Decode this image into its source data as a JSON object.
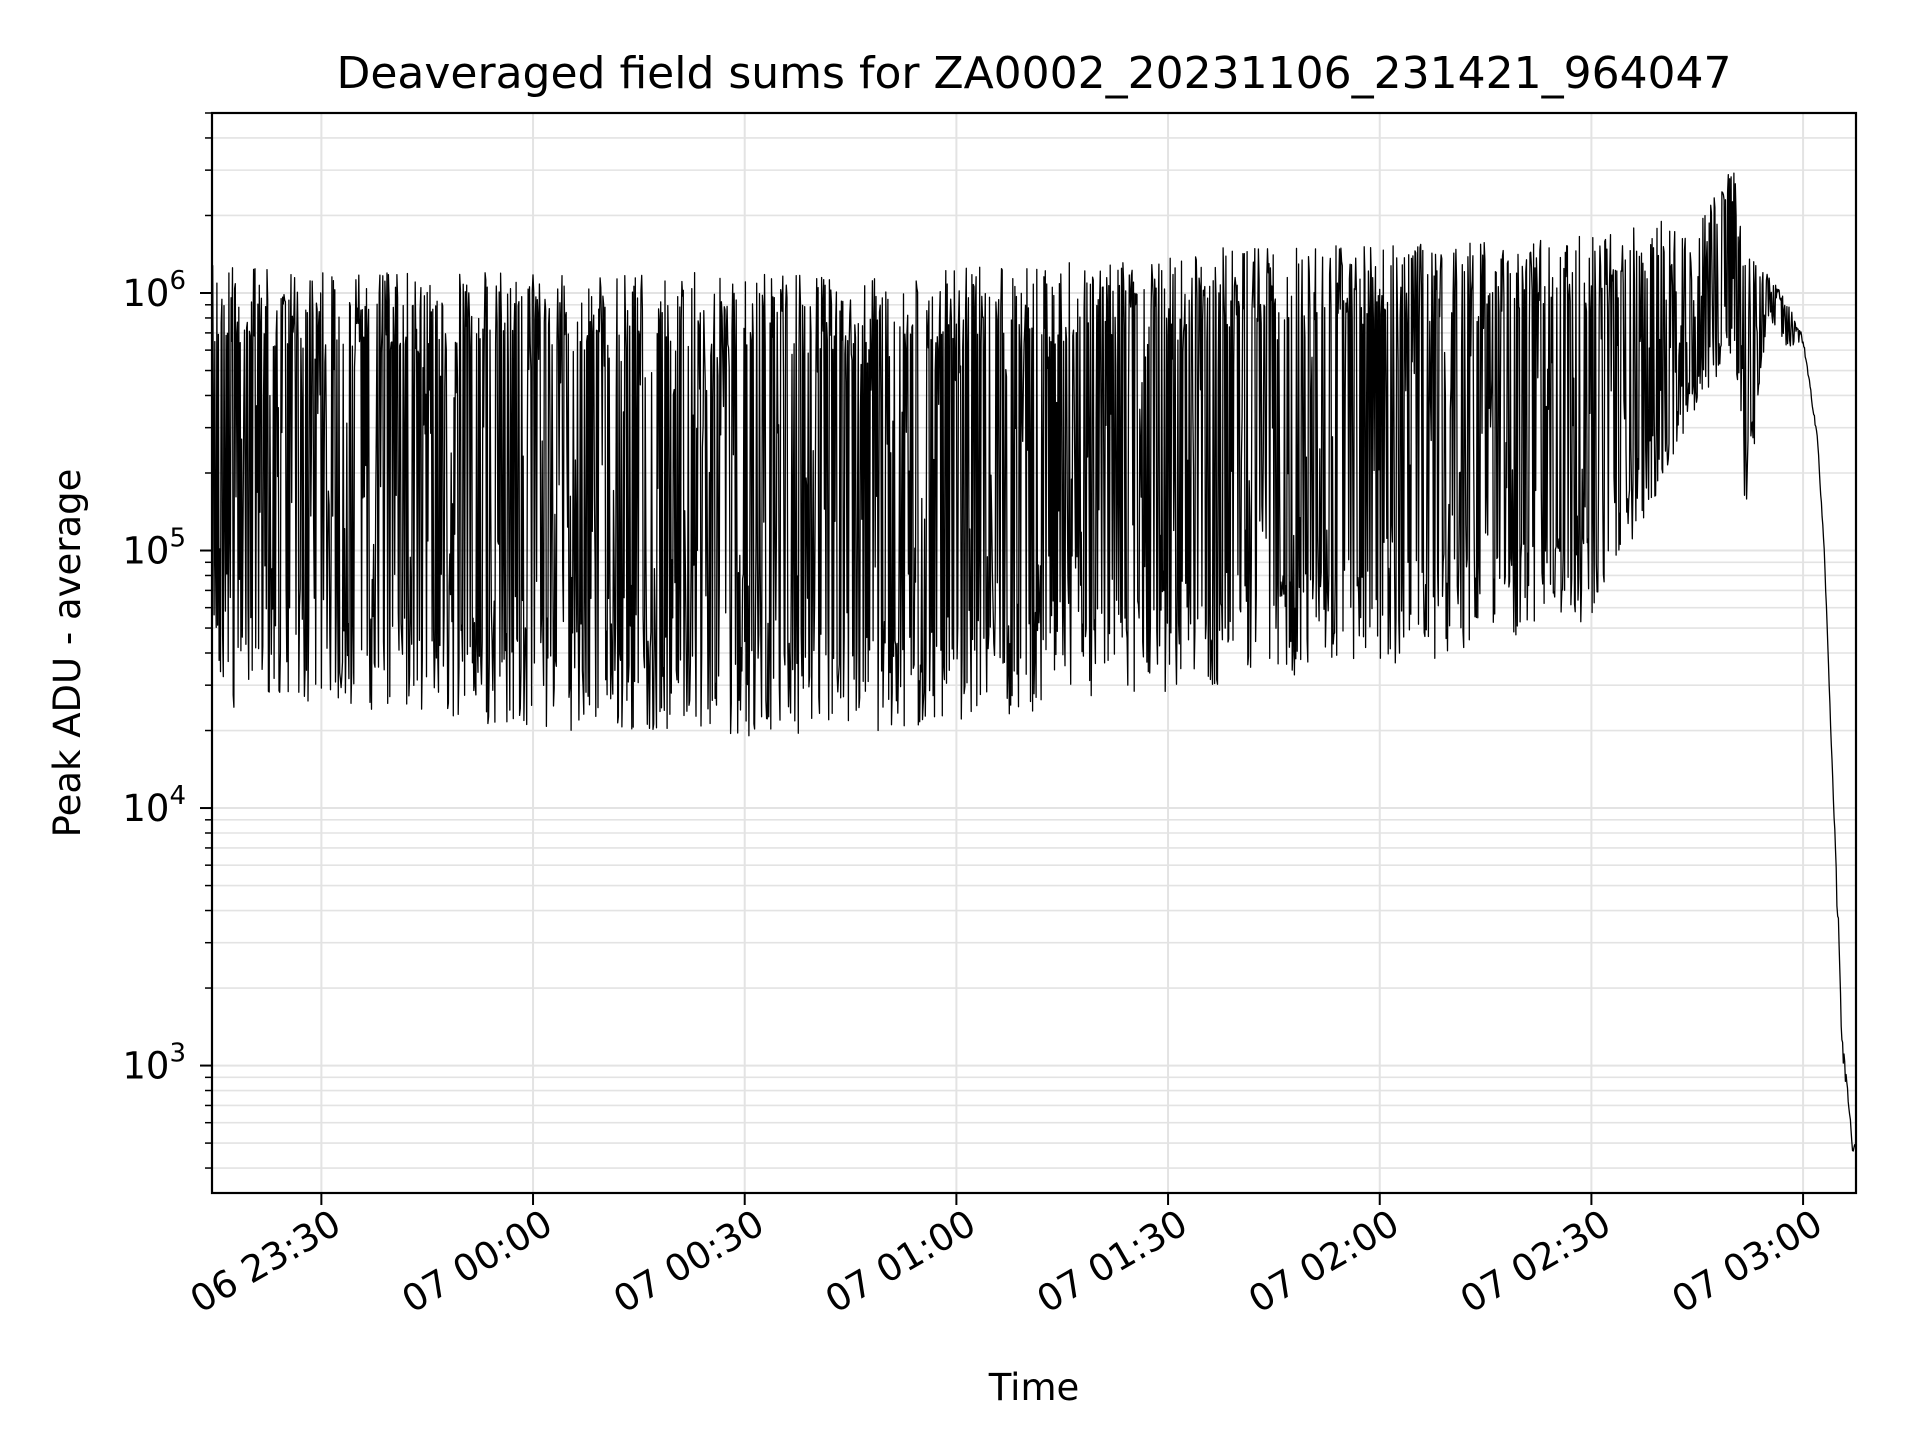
{
  "chart_data": {
    "type": "line",
    "title": "Deaveraged field sums for ZA0002_20231106_231421_964047",
    "xlabel": "Time",
    "ylabel": "Peak ADU - average",
    "yscale": "log",
    "ylim": [
      320,
      5000000
    ],
    "xlim": [
      "2023-11-06 23:14:30",
      "2023-11-07 03:07:30"
    ],
    "grid": true,
    "line_color": "#000000",
    "x_ticks": [
      {
        "at": "2023-11-06 23:30",
        "label": "06 23:30"
      },
      {
        "at": "2023-11-07 00:00",
        "label": "07 00:00"
      },
      {
        "at": "2023-11-07 00:30",
        "label": "07 00:30"
      },
      {
        "at": "2023-11-07 01:00",
        "label": "07 01:00"
      },
      {
        "at": "2023-11-07 01:30",
        "label": "07 01:30"
      },
      {
        "at": "2023-11-07 02:00",
        "label": "07 02:00"
      },
      {
        "at": "2023-11-07 02:30",
        "label": "07 02:30"
      },
      {
        "at": "2023-11-07 03:00",
        "label": "07 03:00"
      }
    ],
    "y_ticks": [
      {
        "value": 1000,
        "base": "10",
        "exp": "3"
      },
      {
        "value": 10000,
        "base": "10",
        "exp": "4"
      },
      {
        "value": 100000,
        "base": "10",
        "exp": "5"
      },
      {
        "value": 1000000,
        "base": "10",
        "exp": "6"
      }
    ],
    "series": [
      {
        "x": [
          "2023-11-06 23:14:30",
          "2023-11-06 23:20:00",
          "2023-11-06 23:30:00",
          "2023-11-06 23:45:00",
          "2023-11-07 00:00:00",
          "2023-11-07 00:15:00",
          "2023-11-07 00:30:00",
          "2023-11-07 00:45:00",
          "2023-11-07 00:50:00",
          "2023-11-07 01:00:00",
          "2023-11-07 01:15:00",
          "2023-11-07 01:30:00",
          "2023-11-07 01:45:00",
          "2023-11-07 02:00:00",
          "2023-11-07 02:15:00",
          "2023-11-07 02:25:00",
          "2023-11-07 02:30:00",
          "2023-11-07 02:35:00",
          "2023-11-07 02:40:00",
          "2023-11-07 02:45:00",
          "2023-11-07 02:50:00",
          "2023-11-07 02:52:00",
          "2023-11-07 02:55:00",
          "2023-11-07 02:58:00",
          "2023-11-07 03:00:00",
          "2023-11-07 03:02:00",
          "2023-11-07 03:03:00",
          "2023-11-07 03:04:00",
          "2023-11-07 03:04:30",
          "2023-11-07 03:05:00",
          "2023-11-07 03:05:30",
          "2023-11-07 03:06:00",
          "2023-11-07 03:07:00"
        ],
        "peak": [
          1300000,
          1250000,
          1200000,
          1200000,
          1250000,
          1200000,
          1200000,
          1150000,
          1150000,
          1250000,
          1300000,
          1500000,
          1500000,
          1550000,
          1600000,
          1600000,
          1700000,
          1800000,
          1900000,
          1800000,
          3200000,
          1400000,
          1200000,
          900000,
          650000,
          280000,
          100000,
          18000,
          8000,
          3800,
          1300,
          1000,
          480
        ],
        "low": [
          23000,
          25000,
          25000,
          23000,
          20000,
          20000,
          19000,
          20000,
          17000,
          22000,
          24000,
          28000,
          32000,
          34000,
          42000,
          48000,
          55000,
          95000,
          180000,
          350000,
          600000,
          130000,
          800000,
          600000,
          650000,
          280000,
          100000,
          18000,
          8000,
          2700,
          1100,
          850,
          480
        ]
      }
    ]
  }
}
